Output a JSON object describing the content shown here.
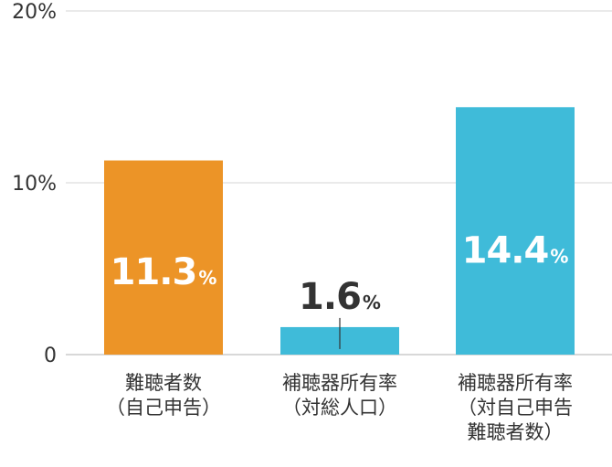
{
  "chart_data": {
    "type": "bar",
    "categories": [
      "難聴者数\n（自己申告）",
      "補聴器所有率\n（対総人口）",
      "補聴器所有率\n（対自己申告\n難聴者数）"
    ],
    "values": [
      11.3,
      1.6,
      14.4
    ],
    "value_labels": [
      "11.3",
      "1.6",
      "14.4"
    ],
    "value_unit": "%",
    "colors": [
      "#ec9427",
      "#3fbbd9",
      "#3fbbd9"
    ],
    "y_ticks": [
      {
        "value": 0,
        "label": "0"
      },
      {
        "value": 10,
        "label": "10%"
      },
      {
        "value": 20,
        "label": "20%"
      }
    ],
    "ylim": [
      0,
      20
    ],
    "grid": true
  }
}
